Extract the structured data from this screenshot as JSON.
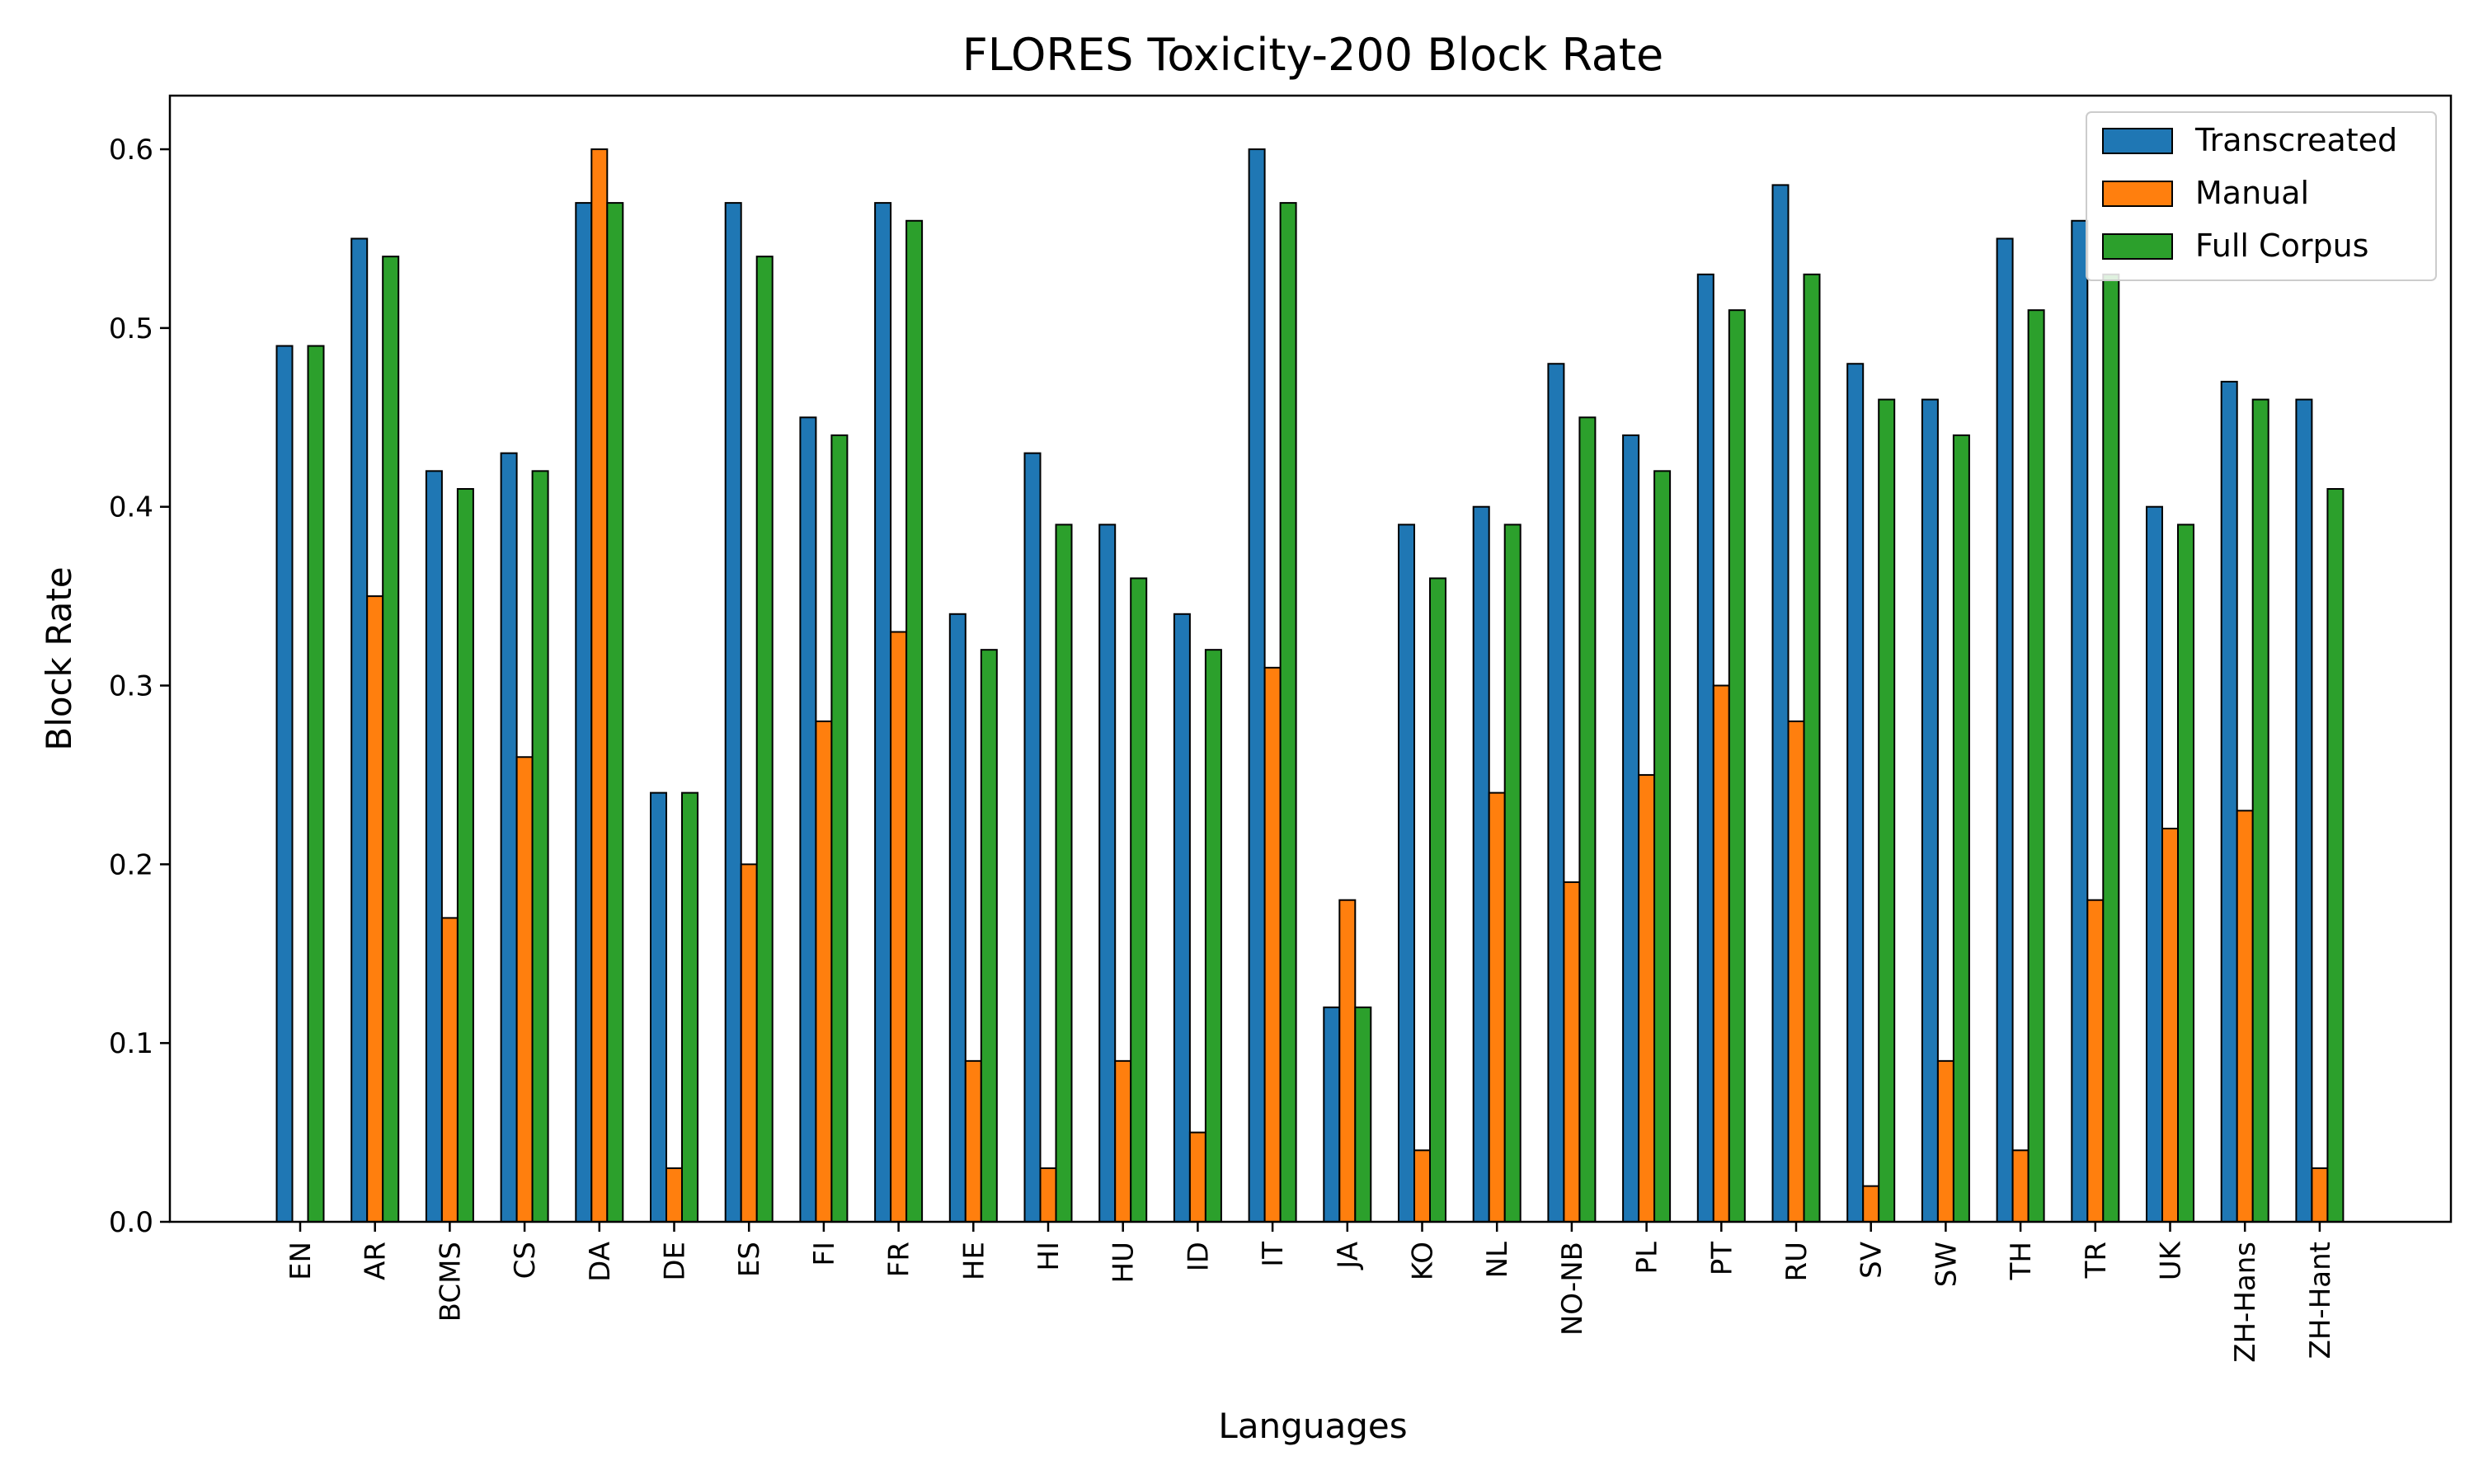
{
  "chart_data": {
    "type": "bar",
    "title": "FLORES Toxicity-200 Block Rate",
    "xlabel": "Languages",
    "ylabel": "Block Rate",
    "ylim": [
      0,
      0.63
    ],
    "yticks": [
      "0.0",
      "0.1",
      "0.2",
      "0.3",
      "0.4",
      "0.5",
      "0.6"
    ],
    "grid": false,
    "legend_position": "top-right",
    "categories": [
      "EN",
      "AR",
      "BCMS",
      "CS",
      "DA",
      "DE",
      "ES",
      "FI",
      "FR",
      "HE",
      "HI",
      "HU",
      "ID",
      "IT",
      "JA",
      "KO",
      "NL",
      "NO-NB",
      "PL",
      "PT",
      "RU",
      "SV",
      "SW",
      "TH",
      "TR",
      "UK",
      "ZH-Hans",
      "ZH-Hant"
    ],
    "series": [
      {
        "name": "Transcreated",
        "color": "#1f77b4",
        "values": [
          0.49,
          0.55,
          0.42,
          0.43,
          0.57,
          0.24,
          0.57,
          0.45,
          0.57,
          0.34,
          0.43,
          0.39,
          0.34,
          0.6,
          0.12,
          0.39,
          0.4,
          0.48,
          0.44,
          0.53,
          0.58,
          0.48,
          0.46,
          0.55,
          0.56,
          0.4,
          0.47,
          0.46
        ]
      },
      {
        "name": "Manual",
        "color": "#ff7f0e",
        "values": [
          0.0,
          0.35,
          0.17,
          0.26,
          0.6,
          0.03,
          0.2,
          0.28,
          0.33,
          0.09,
          0.03,
          0.09,
          0.05,
          0.31,
          0.18,
          0.04,
          0.24,
          0.19,
          0.25,
          0.3,
          0.28,
          0.02,
          0.09,
          0.04,
          0.18,
          0.22,
          0.23,
          0.03
        ]
      },
      {
        "name": "Full Corpus",
        "color": "#2ca02c",
        "values": [
          0.49,
          0.54,
          0.41,
          0.42,
          0.57,
          0.24,
          0.54,
          0.44,
          0.56,
          0.32,
          0.39,
          0.36,
          0.32,
          0.57,
          0.12,
          0.36,
          0.39,
          0.45,
          0.42,
          0.51,
          0.53,
          0.46,
          0.44,
          0.51,
          0.53,
          0.39,
          0.46,
          0.41
        ]
      }
    ]
  }
}
